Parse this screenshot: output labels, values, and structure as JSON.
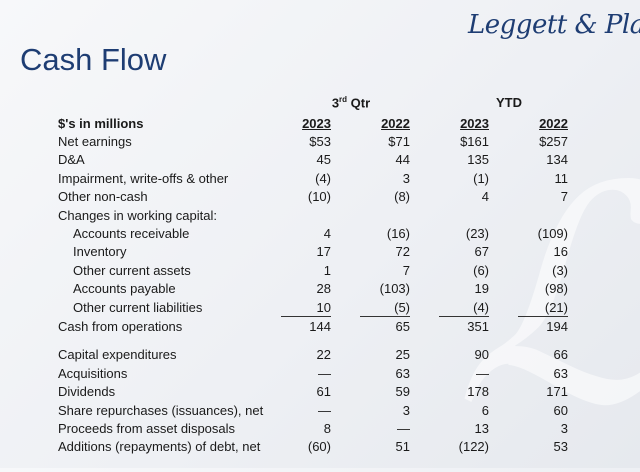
{
  "logo": "Leggett & Platt",
  "title": "Cash Flow",
  "groups": {
    "quarter": "3",
    "quarter_sup": "rd",
    "quarter_suffix": " Qtr",
    "ytd": "YTD"
  },
  "header": {
    "label": "$'s in millions",
    "cols": [
      "2023",
      "2022",
      "2023",
      "2022"
    ]
  },
  "rows": [
    {
      "label": "Net earnings",
      "v": [
        "$53",
        "$71",
        "$161",
        "$257"
      ]
    },
    {
      "label": "D&A",
      "v": [
        "45",
        "44",
        "135",
        "134"
      ]
    },
    {
      "label": "Impairment, write-offs & other",
      "v": [
        "(4)",
        "3",
        "(1)",
        "11"
      ]
    },
    {
      "label": "Other non-cash",
      "v": [
        "(10)",
        "(8)",
        "4",
        "7"
      ]
    },
    {
      "label": "Changes in working capital:",
      "v": [
        "",
        "",
        "",
        ""
      ]
    },
    {
      "label": "Accounts receivable",
      "v": [
        "4",
        "(16)",
        "(23)",
        "(109)"
      ]
    },
    {
      "label": "Inventory",
      "v": [
        "17",
        "72",
        "67",
        "16"
      ]
    },
    {
      "label": "Other current assets",
      "v": [
        "1",
        "7",
        "(6)",
        "(3)"
      ]
    },
    {
      "label": "Accounts payable",
      "v": [
        "28",
        "(103)",
        "19",
        "(98)"
      ]
    },
    {
      "label": "Other current liabilities",
      "v": [
        "10",
        "(5)",
        "(4)",
        "(21)"
      ]
    },
    {
      "label": "Cash from operations",
      "v": [
        "144",
        "65",
        "351",
        "194"
      ]
    },
    {
      "label": "Capital expenditures",
      "v": [
        "22",
        "25",
        "90",
        "66"
      ]
    },
    {
      "label": "Acquisitions",
      "v": [
        "—",
        "63",
        "—",
        "63"
      ]
    },
    {
      "label": "Dividends",
      "v": [
        "61",
        "59",
        "178",
        "171"
      ]
    },
    {
      "label": "Share repurchases (issuances), net",
      "v": [
        "—",
        "3",
        "6",
        "60"
      ]
    },
    {
      "label": "Proceeds from asset disposals",
      "v": [
        "8",
        "—",
        "13",
        "3"
      ]
    },
    {
      "label": "Additions (repayments) of debt, net",
      "v": [
        "(60)",
        "51",
        "(122)",
        "53"
      ]
    }
  ]
}
